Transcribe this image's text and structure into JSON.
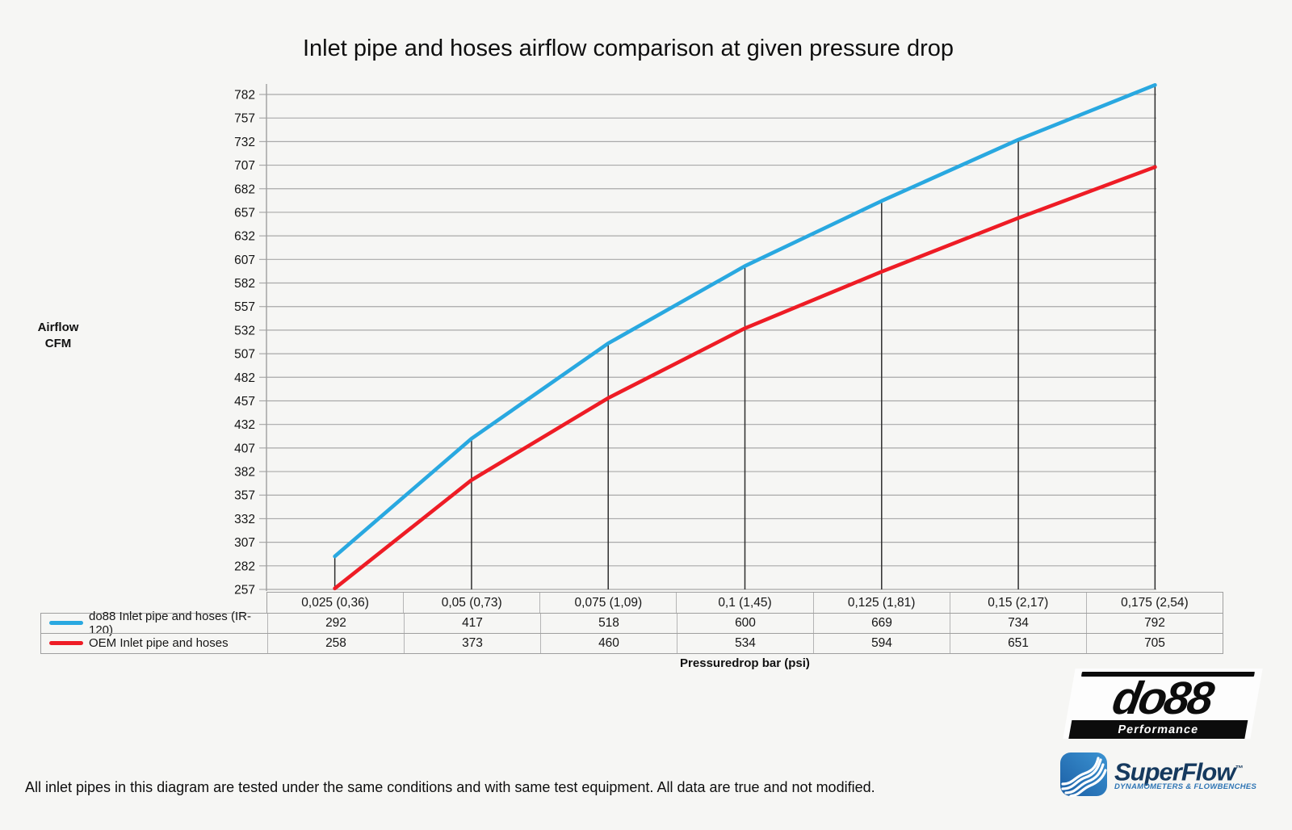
{
  "title": "Inlet pipe and hoses airflow comparison at given pressure drop",
  "chart_data": {
    "type": "line",
    "categories": [
      "0,025 (0,36)",
      "0,05 (0,73)",
      "0,075 (1,09)",
      "0,1 (1,45)",
      "0,125 (1,81)",
      "0,15 (2,17)",
      "0,175 (2,54)"
    ],
    "series": [
      {
        "name": "do88 Inlet pipe and hoses (IR-120)",
        "values": [
          292,
          417,
          518,
          600,
          669,
          734,
          792
        ],
        "color": "#29a8e0"
      },
      {
        "name": "OEM Inlet pipe and hoses",
        "values": [
          258,
          373,
          460,
          534,
          594,
          651,
          705
        ],
        "color": "#ee1c25"
      }
    ],
    "xlabel": "Pressuredrop bar (psi)",
    "ylabel": "Airflow CFM",
    "ylabel_lines": [
      "Airflow",
      "CFM"
    ],
    "y_ticks": [
      257,
      282,
      307,
      332,
      357,
      382,
      407,
      432,
      457,
      482,
      507,
      532,
      557,
      582,
      607,
      632,
      657,
      682,
      707,
      732,
      757,
      782
    ],
    "ylim": [
      257,
      792
    ],
    "grid": "horizontal",
    "drop_lines_from_top_series": true,
    "legend_position": "table-left-column"
  },
  "colors": {
    "background": "#f6f6f4",
    "gridline": "#a9a9a9",
    "axis": "#9f9f9f",
    "drop_line": "#2e2e2e",
    "text": "#141414",
    "do88_line": "#29a8e0",
    "oem_line": "#ee1c25",
    "superflow_blue": "#2d74b4",
    "superflow_navy": "#15395e"
  },
  "footer": {
    "note": "All inlet pipes in this diagram are tested under the same conditions and with same test equipment. All data are true and not modified."
  },
  "logos": {
    "do88": {
      "name": "do88",
      "tagline": "Performance"
    },
    "superflow": {
      "name": "SuperFlow",
      "tm": "™",
      "tagline": "DYNAMOMETERS & FLOWBENCHES"
    }
  }
}
